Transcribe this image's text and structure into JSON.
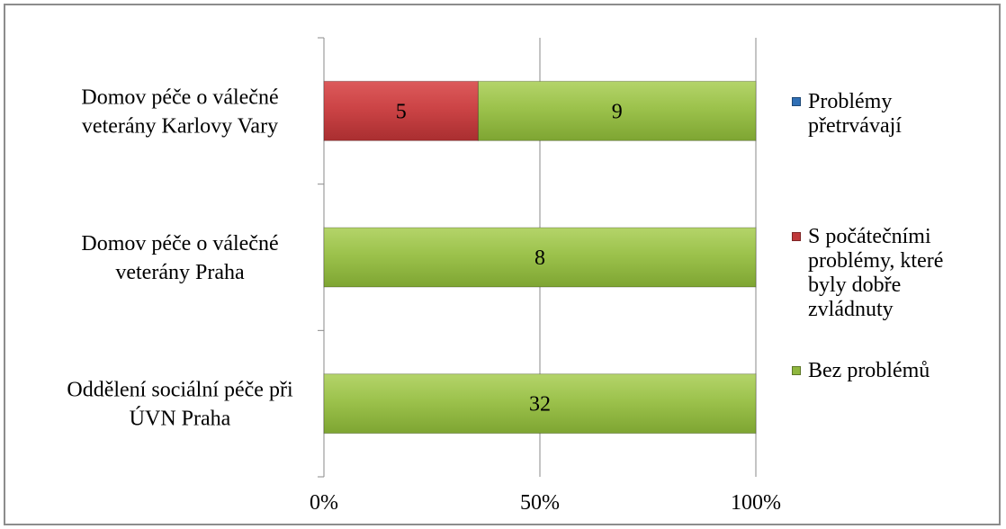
{
  "chart_data": {
    "type": "bar",
    "orientation": "horizontal",
    "stacking": "100-percent",
    "categories": [
      [
        "Domov péče o válečné",
        "veterány Karlovy Vary"
      ],
      [
        "Domov péče o válečné",
        "veterány Praha"
      ],
      [
        "Oddělení sociální péče při",
        "ÚVN Praha"
      ]
    ],
    "series": [
      {
        "name": "Problémy přetrvávají",
        "color": "#2f6fb5",
        "values": [
          0,
          0,
          0
        ]
      },
      {
        "name": "S počátečními problémy, které byly dobře zvládnuty",
        "color": "#c0393b",
        "values": [
          5,
          0,
          0
        ]
      },
      {
        "name": "Bez problémů",
        "color": "#8fb73e",
        "values": [
          9,
          8,
          32
        ]
      }
    ],
    "x_ticks": [
      "0%",
      "50%",
      "100%"
    ],
    "xlim": [
      0,
      100
    ],
    "grid": "vertical",
    "legend_position": "right"
  },
  "legend": [
    {
      "lines": [
        "Problémy",
        "přetrvávají"
      ],
      "color": "#2f6fb5"
    },
    {
      "lines": [
        "S počátečními",
        "problémy, které",
        "byly dobře",
        "zvládnuty"
      ],
      "color": "#c0393b"
    },
    {
      "lines": [
        "Bez problémů"
      ],
      "color": "#8fb73e"
    }
  ]
}
